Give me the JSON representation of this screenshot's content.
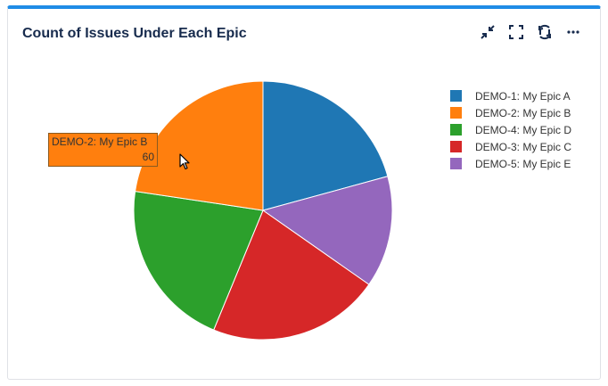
{
  "widget": {
    "title": "Count of Issues Under Each Epic",
    "icons": [
      "collapse-icon",
      "fullscreen-icon",
      "refresh-icon",
      "more-icon"
    ]
  },
  "chart_data": {
    "type": "pie",
    "title": "Count of Issues Under Each Epic",
    "slices": [
      {
        "label": "DEMO-1: My Epic A",
        "value": 55,
        "color": "#1f77b4"
      },
      {
        "label": "DEMO-5: My Epic E",
        "value": 37,
        "color": "#9467bd"
      },
      {
        "label": "DEMO-3: My Epic C",
        "value": 57,
        "color": "#d62728"
      },
      {
        "label": "DEMO-4: My Epic D",
        "value": 56,
        "color": "#2ca02c"
      },
      {
        "label": "DEMO-2: My Epic B",
        "value": 60,
        "color": "#ff7f0e"
      }
    ],
    "legend": {
      "placement": "right",
      "items": [
        {
          "label": "DEMO-1: My Epic A",
          "color": "#1f77b4"
        },
        {
          "label": "DEMO-2: My Epic B",
          "color": "#ff7f0e"
        },
        {
          "label": "DEMO-4: My Epic D",
          "color": "#2ca02c"
        },
        {
          "label": "DEMO-3: My Epic C",
          "color": "#d62728"
        },
        {
          "label": "DEMO-5: My Epic E",
          "color": "#9467bd"
        }
      ]
    },
    "tooltip": {
      "label": "DEMO-2: My Epic B",
      "value": "60"
    }
  }
}
